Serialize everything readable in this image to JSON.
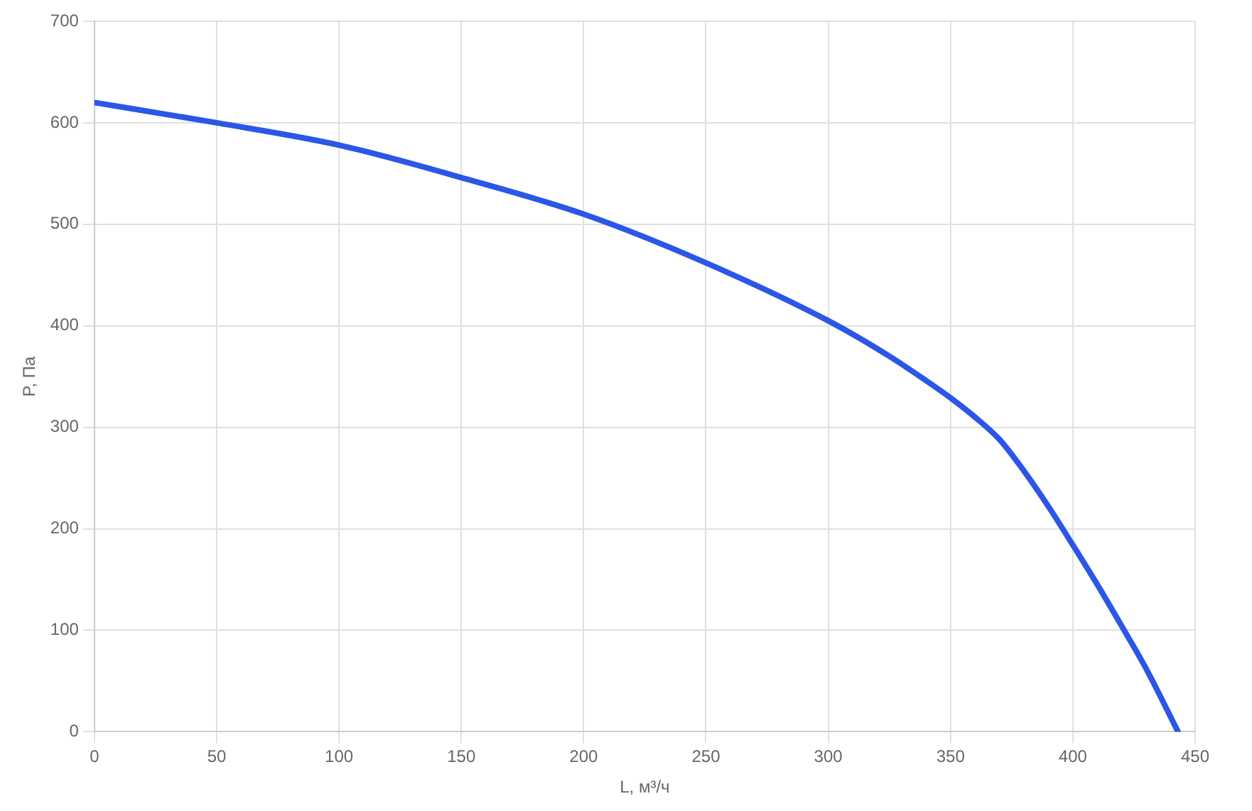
{
  "chart_data": {
    "type": "line",
    "xlabel": "L, м³/ч",
    "ylabel": "P, Па",
    "xlim": [
      0,
      450
    ],
    "ylim": [
      0,
      700
    ],
    "xticks": [
      0,
      50,
      100,
      150,
      200,
      250,
      300,
      350,
      400,
      450
    ],
    "yticks": [
      0,
      100,
      200,
      300,
      400,
      500,
      600,
      700
    ],
    "grid": true,
    "legend": false,
    "marker": "none",
    "line_style": "solid",
    "series": [
      {
        "color": "#2b56e8",
        "x": [
          0,
          50,
          100,
          150,
          200,
          250,
          300,
          325,
          340,
          350,
          360,
          370,
          380,
          390,
          400,
          410,
          420,
          430,
          443
        ],
        "values": [
          620,
          600,
          578,
          546,
          510,
          462,
          405,
          370,
          346,
          329,
          310,
          288,
          257,
          222,
          184,
          145,
          104,
          62,
          0
        ]
      }
    ]
  }
}
